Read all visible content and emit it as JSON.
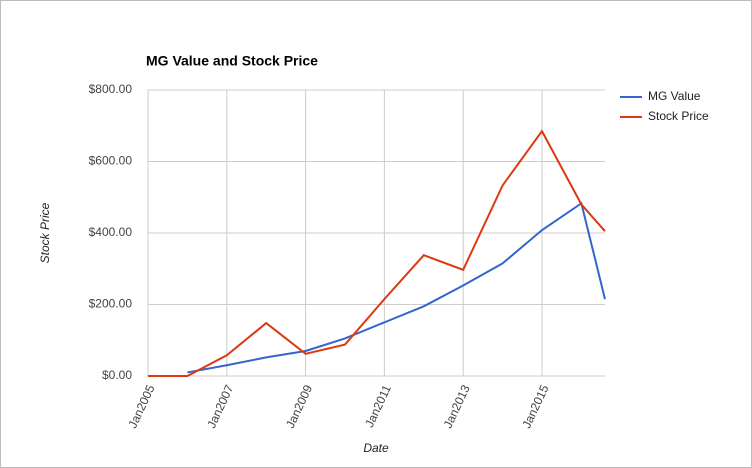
{
  "chart_data": {
    "type": "line",
    "title": "MG Value and Stock Price",
    "x_label": "Date",
    "y_label": "Stock Price",
    "x": [
      2005,
      2006,
      2007,
      2008,
      2009,
      2010,
      2011,
      2012,
      2013,
      2014,
      2015,
      2016,
      2016.6
    ],
    "series": [
      {
        "name": "MG Value",
        "color": "#3366cc",
        "values": [
          null,
          10,
          30,
          52,
          70,
          105,
          150,
          195,
          253,
          315,
          408,
          483,
          215
        ]
      },
      {
        "name": "Stock Price",
        "color": "#dc3912",
        "values": [
          0,
          0,
          58,
          148,
          62,
          88,
          215,
          338,
          297,
          533,
          685,
          480,
          405
        ]
      }
    ],
    "xlim": [
      2005,
      2016.6
    ],
    "xticks": [
      {
        "value": 2005,
        "label": "Jan2005"
      },
      {
        "value": 2007,
        "label": "Jan2007"
      },
      {
        "value": 2009,
        "label": "Jan2009"
      },
      {
        "value": 2011,
        "label": "Jan2011"
      },
      {
        "value": 2013,
        "label": "Jan2013"
      },
      {
        "value": 2015,
        "label": "Jan2015"
      }
    ],
    "ylim": [
      0,
      800
    ],
    "yticks": [
      {
        "value": 0,
        "label": "$0.00"
      },
      {
        "value": 200,
        "label": "$200.00"
      },
      {
        "value": 400,
        "label": "$400.00"
      },
      {
        "value": 600,
        "label": "$600.00"
      },
      {
        "value": 800,
        "label": "$800.00"
      }
    ],
    "grid": true,
    "legend": "right"
  }
}
